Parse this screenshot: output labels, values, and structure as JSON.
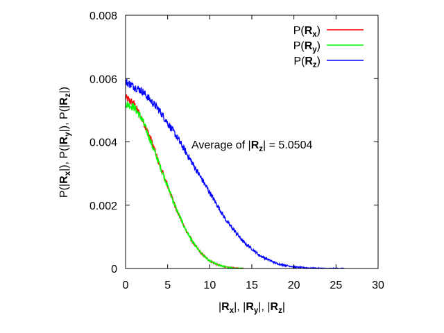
{
  "chart_data": {
    "type": "line",
    "title": "",
    "xlabel": {
      "parts": [
        "|",
        "R",
        "x",
        "|, |",
        "R",
        "y",
        "|, |",
        "R",
        "z",
        "|"
      ]
    },
    "ylabel": {
      "parts": [
        "P(|",
        "R",
        "x",
        "|), P(|",
        "R",
        "y",
        "|), P(|",
        "R",
        "z",
        "|)"
      ]
    },
    "xlim": [
      0,
      30
    ],
    "ylim": [
      0,
      0.008
    ],
    "xticks": [
      "0",
      "5",
      "10",
      "15",
      "20",
      "25",
      "30"
    ],
    "yticks": [
      "0",
      "0.002",
      "0.004",
      "0.006",
      "0.008"
    ],
    "grid": false,
    "legend_position": "top-right",
    "annotation": {
      "prefix": "Average of |",
      "bold": "R",
      "sub": "z",
      "suffix": "| = 5.0504"
    },
    "series": [
      {
        "name": "P(Rx)",
        "legend": {
          "prefix": "P(",
          "bold": "R",
          "sub": "x",
          "suffix": ")"
        },
        "color": "#ff0000",
        "noise": 0.00012,
        "x": [
          0,
          1,
          2,
          3,
          4,
          5,
          6,
          7,
          8,
          9,
          10,
          11,
          12,
          13,
          14
        ],
        "y": [
          0.0054,
          0.0052,
          0.0047,
          0.0041,
          0.0033,
          0.0026,
          0.0019,
          0.0013,
          0.00082,
          0.00047,
          0.00024,
          0.00011,
          4e-05,
          1e-05,
          0
        ]
      },
      {
        "name": "P(Ry)",
        "legend": {
          "prefix": "P(",
          "bold": "R",
          "sub": "y",
          "suffix": ")"
        },
        "color": "#00ff00",
        "noise": 0.00012,
        "x": [
          0,
          1,
          2,
          3,
          4,
          5,
          6,
          7,
          8,
          9,
          10,
          11,
          12,
          13,
          14
        ],
        "y": [
          0.0052,
          0.0051,
          0.0047,
          0.004,
          0.0033,
          0.0026,
          0.0019,
          0.0013,
          0.00082,
          0.00047,
          0.00024,
          0.00011,
          4e-05,
          1e-05,
          0
        ]
      },
      {
        "name": "P(Rz)",
        "legend": {
          "prefix": "P(",
          "bold": "R",
          "sub": "z",
          "suffix": ")"
        },
        "color": "#0000ff",
        "noise": 0.00012,
        "x": [
          0,
          2,
          4,
          6,
          8,
          10,
          12,
          14,
          16,
          18,
          20,
          22,
          24,
          26
        ],
        "y": [
          0.0059,
          0.0056,
          0.005,
          0.0042,
          0.0033,
          0.0024,
          0.0015,
          0.00084,
          0.0004,
          0.00015,
          5e-05,
          1e-05,
          0,
          0
        ]
      }
    ]
  }
}
